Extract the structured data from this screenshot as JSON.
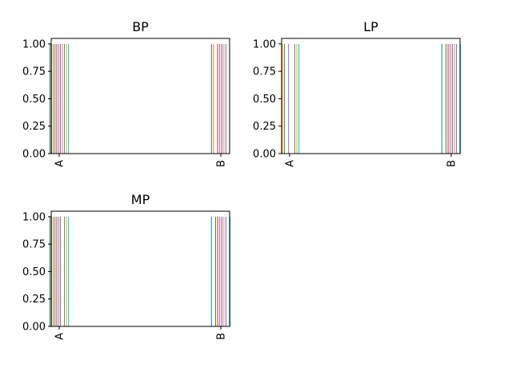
{
  "chart_data": [
    {
      "type": "bar",
      "title": "BP",
      "categories": [
        "A",
        "B"
      ],
      "y_ticks": [
        "0.00",
        "0.25",
        "0.50",
        "0.75",
        "1.00"
      ],
      "ylim": [
        0,
        1.05
      ],
      "series": [
        {
          "color": "#1f77b4",
          "values": [
            1,
            1
          ]
        },
        {
          "color": "#ff7f0e",
          "values": [
            1,
            1
          ]
        },
        {
          "color": "#2ca02c",
          "values": [
            1,
            0
          ]
        },
        {
          "color": "#d62728",
          "values": [
            1,
            1
          ]
        },
        {
          "color": "#9467bd",
          "values": [
            1,
            1
          ]
        },
        {
          "color": "#8c564b",
          "values": [
            1,
            1
          ]
        },
        {
          "color": "#e377c2",
          "values": [
            1,
            1
          ]
        },
        {
          "color": "#7f7f7f",
          "values": [
            1,
            1
          ]
        },
        {
          "color": "#bcbd22",
          "values": [
            1,
            0
          ]
        },
        {
          "color": "#17becf",
          "values": [
            1,
            0
          ]
        }
      ]
    },
    {
      "type": "bar",
      "title": "LP",
      "categories": [
        "A",
        "B"
      ],
      "y_ticks": [
        "0.00",
        "0.25",
        "0.50",
        "0.75",
        "1.00"
      ],
      "ylim": [
        0,
        1.05
      ],
      "series": [
        {
          "color": "#1f77b4",
          "values": [
            0,
            1
          ]
        },
        {
          "color": "#ff7f0e",
          "values": [
            1,
            0
          ]
        },
        {
          "color": "#2ca02c",
          "values": [
            1,
            1
          ]
        },
        {
          "color": "#d62728",
          "values": [
            0,
            1
          ]
        },
        {
          "color": "#9467bd",
          "values": [
            1,
            1
          ]
        },
        {
          "color": "#8c564b",
          "values": [
            0,
            1
          ]
        },
        {
          "color": "#e377c2",
          "values": [
            0,
            1
          ]
        },
        {
          "color": "#7f7f7f",
          "values": [
            1,
            1
          ]
        },
        {
          "color": "#bcbd22",
          "values": [
            1,
            0
          ]
        },
        {
          "color": "#17becf",
          "values": [
            1,
            1
          ]
        }
      ]
    },
    {
      "type": "bar",
      "title": "MP",
      "categories": [
        "A",
        "B"
      ],
      "y_ticks": [
        "0.00",
        "0.25",
        "0.50",
        "0.75",
        "1.00"
      ],
      "ylim": [
        0,
        1.05
      ],
      "series": [
        {
          "color": "#1f77b4",
          "values": [
            1,
            1
          ]
        },
        {
          "color": "#ff7f0e",
          "values": [
            1,
            0
          ]
        },
        {
          "color": "#2ca02c",
          "values": [
            1,
            1
          ]
        },
        {
          "color": "#d62728",
          "values": [
            1,
            1
          ]
        },
        {
          "color": "#9467bd",
          "values": [
            1,
            1
          ]
        },
        {
          "color": "#8c564b",
          "values": [
            1,
            1
          ]
        },
        {
          "color": "#e377c2",
          "values": [
            0,
            1
          ]
        },
        {
          "color": "#7f7f7f",
          "values": [
            1,
            1
          ]
        },
        {
          "color": "#bcbd22",
          "values": [
            1,
            0
          ]
        },
        {
          "color": "#17becf",
          "values": [
            1,
            1
          ]
        }
      ]
    }
  ]
}
